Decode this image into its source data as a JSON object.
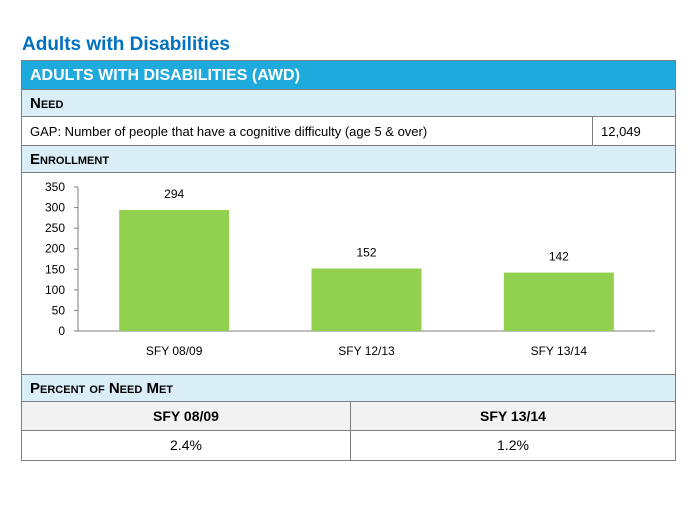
{
  "page_heading": "Adults with Disabilities",
  "table": {
    "title": "ADULTS WITH DISABILITIES (AWD)",
    "need_heading": "Need",
    "gap_label": "GAP: Number of people that have a cognitive difficulty (age 5 & over)",
    "gap_value": "12,049",
    "enrollment_heading": "Enrollment",
    "percent_heading": "Percent of Need Met",
    "percent_columns": [
      "SFY 08/09",
      "SFY 13/14"
    ],
    "percent_values": [
      "2.4%",
      "1.2%"
    ]
  },
  "chart_data": {
    "type": "bar",
    "categories": [
      "SFY 08/09",
      "SFY 12/13",
      "SFY 13/14"
    ],
    "values": [
      294,
      152,
      142
    ],
    "data_labels": [
      "294",
      "152",
      "142"
    ],
    "yticks": [
      0,
      50,
      100,
      150,
      200,
      250,
      300,
      350
    ],
    "ylim": [
      0,
      350
    ],
    "bar_color": "#92d050",
    "grid": false,
    "title": "",
    "xlabel": "",
    "ylabel": ""
  }
}
